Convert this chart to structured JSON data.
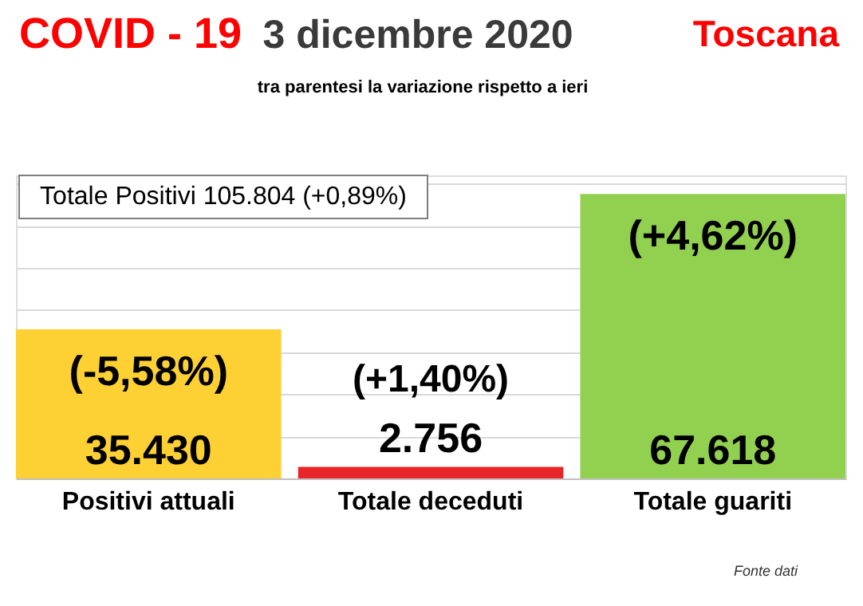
{
  "chart_data": {
    "type": "bar",
    "title": "3 dicembre 2020",
    "subtitle": "tra parentesi la variazione rispetto a ieri",
    "categories": [
      "Positivi attuali",
      "Totale deceduti",
      "Totale guariti"
    ],
    "values": [
      35430,
      2756,
      67618
    ],
    "colors": [
      "#fdd033",
      "#e8262a",
      "#92d050"
    ],
    "value_labels": [
      "35.430",
      "2.756",
      "67.618"
    ],
    "ylim": [
      0,
      72000
    ],
    "grid": "y",
    "annotations": [
      "COVID - 19",
      "Toscana",
      "Totale Positivi     105.804 (+0,89%)",
      {
        "text": "(-5,58%)",
        "x": "Positivi attuali",
        "y": 35430
      },
      {
        "text": "(+1,40%)",
        "x": "Totale deceduti",
        "y": 2756
      },
      {
        "text": "(+4,62%)",
        "x": "Totale guariti",
        "y": 67618
      },
      "Fonte dati"
    ]
  }
}
